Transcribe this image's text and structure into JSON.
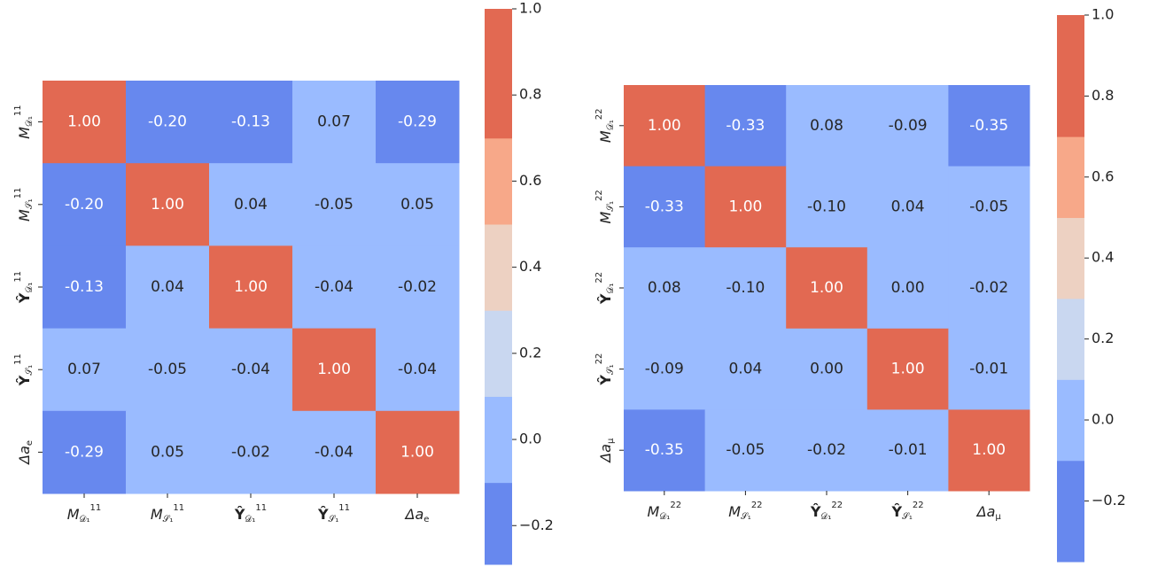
{
  "chart_data": [
    {
      "type": "heatmap",
      "labels": [
        "M_D1^11",
        "M_S1^11",
        "Ŷ_D1^11",
        "Ŷ_S1^11",
        "Δa_e"
      ],
      "label_parts": [
        {
          "base": "M",
          "sub": "𝒟₁",
          "sup": "11"
        },
        {
          "base": "M",
          "sub": "𝒮₁",
          "sup": "11"
        },
        {
          "base": "Ŷ",
          "sub": "𝒟₁",
          "sup": "11"
        },
        {
          "base": "Ŷ",
          "sub": "𝒮₁",
          "sup": "11"
        },
        {
          "base": "Δa",
          "sub": "e",
          "sup": ""
        }
      ],
      "matrix": [
        [
          1.0,
          -0.2,
          -0.13,
          0.07,
          -0.29
        ],
        [
          -0.2,
          1.0,
          0.04,
          -0.05,
          0.05
        ],
        [
          -0.13,
          0.04,
          1.0,
          -0.04,
          -0.02
        ],
        [
          0.07,
          -0.05,
          -0.04,
          1.0,
          -0.04
        ],
        [
          -0.29,
          0.05,
          -0.02,
          -0.04,
          1.0
        ]
      ],
      "colorbar": {
        "ticks": [
          "1.0",
          "0.8",
          "0.6",
          "0.4",
          "0.2",
          "0.0",
          "−0.2"
        ],
        "range": [
          -0.29,
          1.0
        ]
      }
    },
    {
      "type": "heatmap",
      "labels": [
        "M_D1^22",
        "M_S1^22",
        "Ŷ_D1^22",
        "Ŷ_S1^22",
        "Δa_μ"
      ],
      "label_parts": [
        {
          "base": "M",
          "sub": "𝒟₁",
          "sup": "22"
        },
        {
          "base": "M",
          "sub": "𝒮₁",
          "sup": "22"
        },
        {
          "base": "Ŷ",
          "sub": "𝒟₁",
          "sup": "22"
        },
        {
          "base": "Ŷ",
          "sub": "𝒮₁",
          "sup": "22"
        },
        {
          "base": "Δa",
          "sub": "μ",
          "sup": ""
        }
      ],
      "matrix": [
        [
          1.0,
          -0.33,
          0.08,
          -0.09,
          -0.35
        ],
        [
          -0.33,
          1.0,
          -0.1,
          0.04,
          -0.05
        ],
        [
          0.08,
          -0.1,
          1.0,
          0.0,
          -0.02
        ],
        [
          -0.09,
          0.04,
          0.0,
          1.0,
          -0.01
        ],
        [
          -0.35,
          -0.05,
          -0.02,
          -0.01,
          1.0
        ]
      ],
      "colorbar": {
        "ticks": [
          "1.0",
          "0.8",
          "0.6",
          "0.4",
          "0.2",
          "0.0",
          "−0.2"
        ],
        "range": [
          -0.35,
          1.0
        ]
      }
    }
  ],
  "palette": {
    "bins": [
      "#6788ee",
      "#9abbff",
      "#c9d7f0",
      "#edd1c2",
      "#f7a889",
      "#e26952"
    ],
    "text_dark": "#262626",
    "text_light": "#ffffff"
  }
}
